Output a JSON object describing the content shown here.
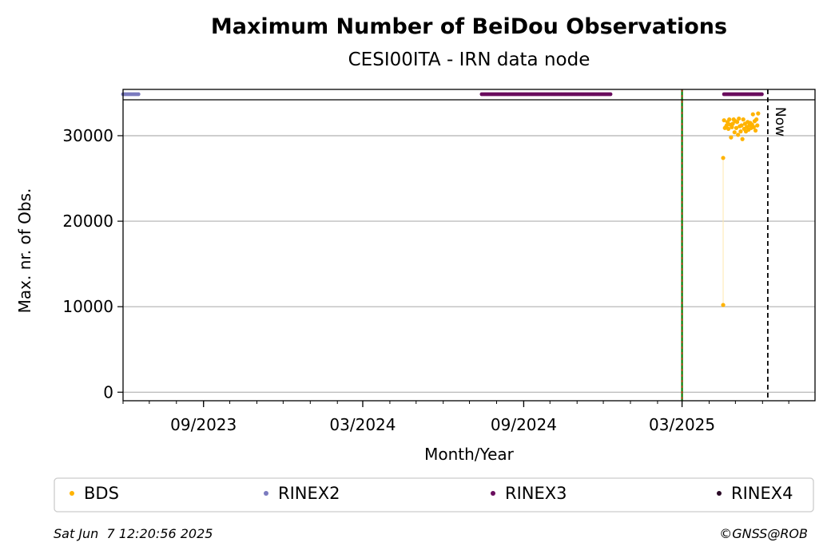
{
  "chart_data": {
    "type": "scatter",
    "title": "Maximum Number of BeiDou Observations",
    "subtitle": "CESI00ITA - IRN data node",
    "xlabel": "Month/Year",
    "ylabel": "Max. nr. of Obs.",
    "x_range": [
      "2023-06-01",
      "2025-07-31"
    ],
    "ylim": [
      -1000,
      34200
    ],
    "x_tick_labels": [
      "09/2023",
      "03/2024",
      "09/2024",
      "03/2025"
    ],
    "x_ticks": [
      "2023-09-01",
      "2024-03-01",
      "2024-09-01",
      "2025-03-01"
    ],
    "y_ticks": [
      0,
      10000,
      20000,
      30000
    ],
    "y_tick_labels": [
      "0",
      "10000",
      "20000",
      "30000"
    ],
    "grid": "horizontal",
    "legend_placement": "bottom",
    "now_label": "Now",
    "now_date": "2025-06-07",
    "marker_date": "2025-03-01",
    "series": [
      {
        "name": "BDS",
        "color": "#ffb300",
        "points": [
          [
            "2025-04-17",
            10200
          ],
          [
            "2025-04-17",
            27400
          ],
          [
            "2025-04-18",
            31800
          ],
          [
            "2025-04-19",
            30900
          ],
          [
            "2025-04-20",
            31000
          ],
          [
            "2025-04-21",
            31200
          ],
          [
            "2025-04-22",
            31600
          ],
          [
            "2025-04-23",
            30800
          ],
          [
            "2025-04-24",
            31900
          ],
          [
            "2025-04-25",
            31300
          ],
          [
            "2025-04-26",
            29800
          ],
          [
            "2025-04-27",
            31000
          ],
          [
            "2025-04-28",
            31400
          ],
          [
            "2025-04-29",
            31900
          ],
          [
            "2025-04-30",
            30400
          ],
          [
            "2025-05-01",
            31700
          ],
          [
            "2025-05-02",
            30900
          ],
          [
            "2025-05-03",
            31600
          ],
          [
            "2025-05-04",
            30100
          ],
          [
            "2025-05-05",
            32000
          ],
          [
            "2025-05-06",
            31100
          ],
          [
            "2025-05-07",
            30500
          ],
          [
            "2025-05-08",
            31200
          ],
          [
            "2025-05-09",
            29600
          ],
          [
            "2025-05-10",
            31900
          ],
          [
            "2025-05-11",
            30800
          ],
          [
            "2025-05-12",
            31400
          ],
          [
            "2025-05-13",
            30500
          ],
          [
            "2025-05-14",
            31000
          ],
          [
            "2025-05-15",
            31600
          ],
          [
            "2025-05-16",
            30700
          ],
          [
            "2025-05-17",
            31200
          ],
          [
            "2025-05-18",
            31500
          ],
          [
            "2025-05-19",
            30900
          ],
          [
            "2025-05-20",
            31300
          ],
          [
            "2025-05-21",
            32500
          ],
          [
            "2025-05-22",
            31000
          ],
          [
            "2025-05-23",
            31700
          ],
          [
            "2025-05-24",
            30600
          ],
          [
            "2025-05-25",
            31900
          ],
          [
            "2025-05-26",
            31200
          ],
          [
            "2025-05-27",
            32600
          ]
        ]
      },
      {
        "name": "RINEX2",
        "color": "#7b7bbf",
        "band": true,
        "ranges": [
          [
            "2023-06-01",
            "2023-06-20"
          ]
        ]
      },
      {
        "name": "RINEX3",
        "color": "#6a0d5e",
        "band": true,
        "ranges": [
          [
            "2024-07-15",
            "2024-12-10"
          ],
          [
            "2025-04-18",
            "2025-06-01"
          ]
        ]
      },
      {
        "name": "RINEX4",
        "color": "#2a0a26",
        "band": true,
        "ranges": []
      }
    ]
  },
  "footer": {
    "timestamp": "Sat Jun  7 12:20:56 2025",
    "credit": "©GNSS@ROB"
  }
}
